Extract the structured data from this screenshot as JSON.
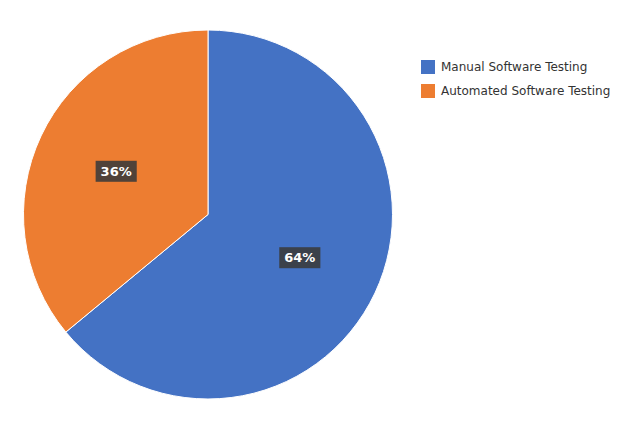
{
  "chart_data": {
    "type": "pie",
    "categories": [
      "Manual Software Testing",
      "Automated Software Testing"
    ],
    "values": [
      64,
      36
    ],
    "value_labels": [
      "64%",
      "36%"
    ],
    "colors": [
      "#4472C4",
      "#ED7D31"
    ],
    "data_labels": true,
    "legend": "right"
  }
}
